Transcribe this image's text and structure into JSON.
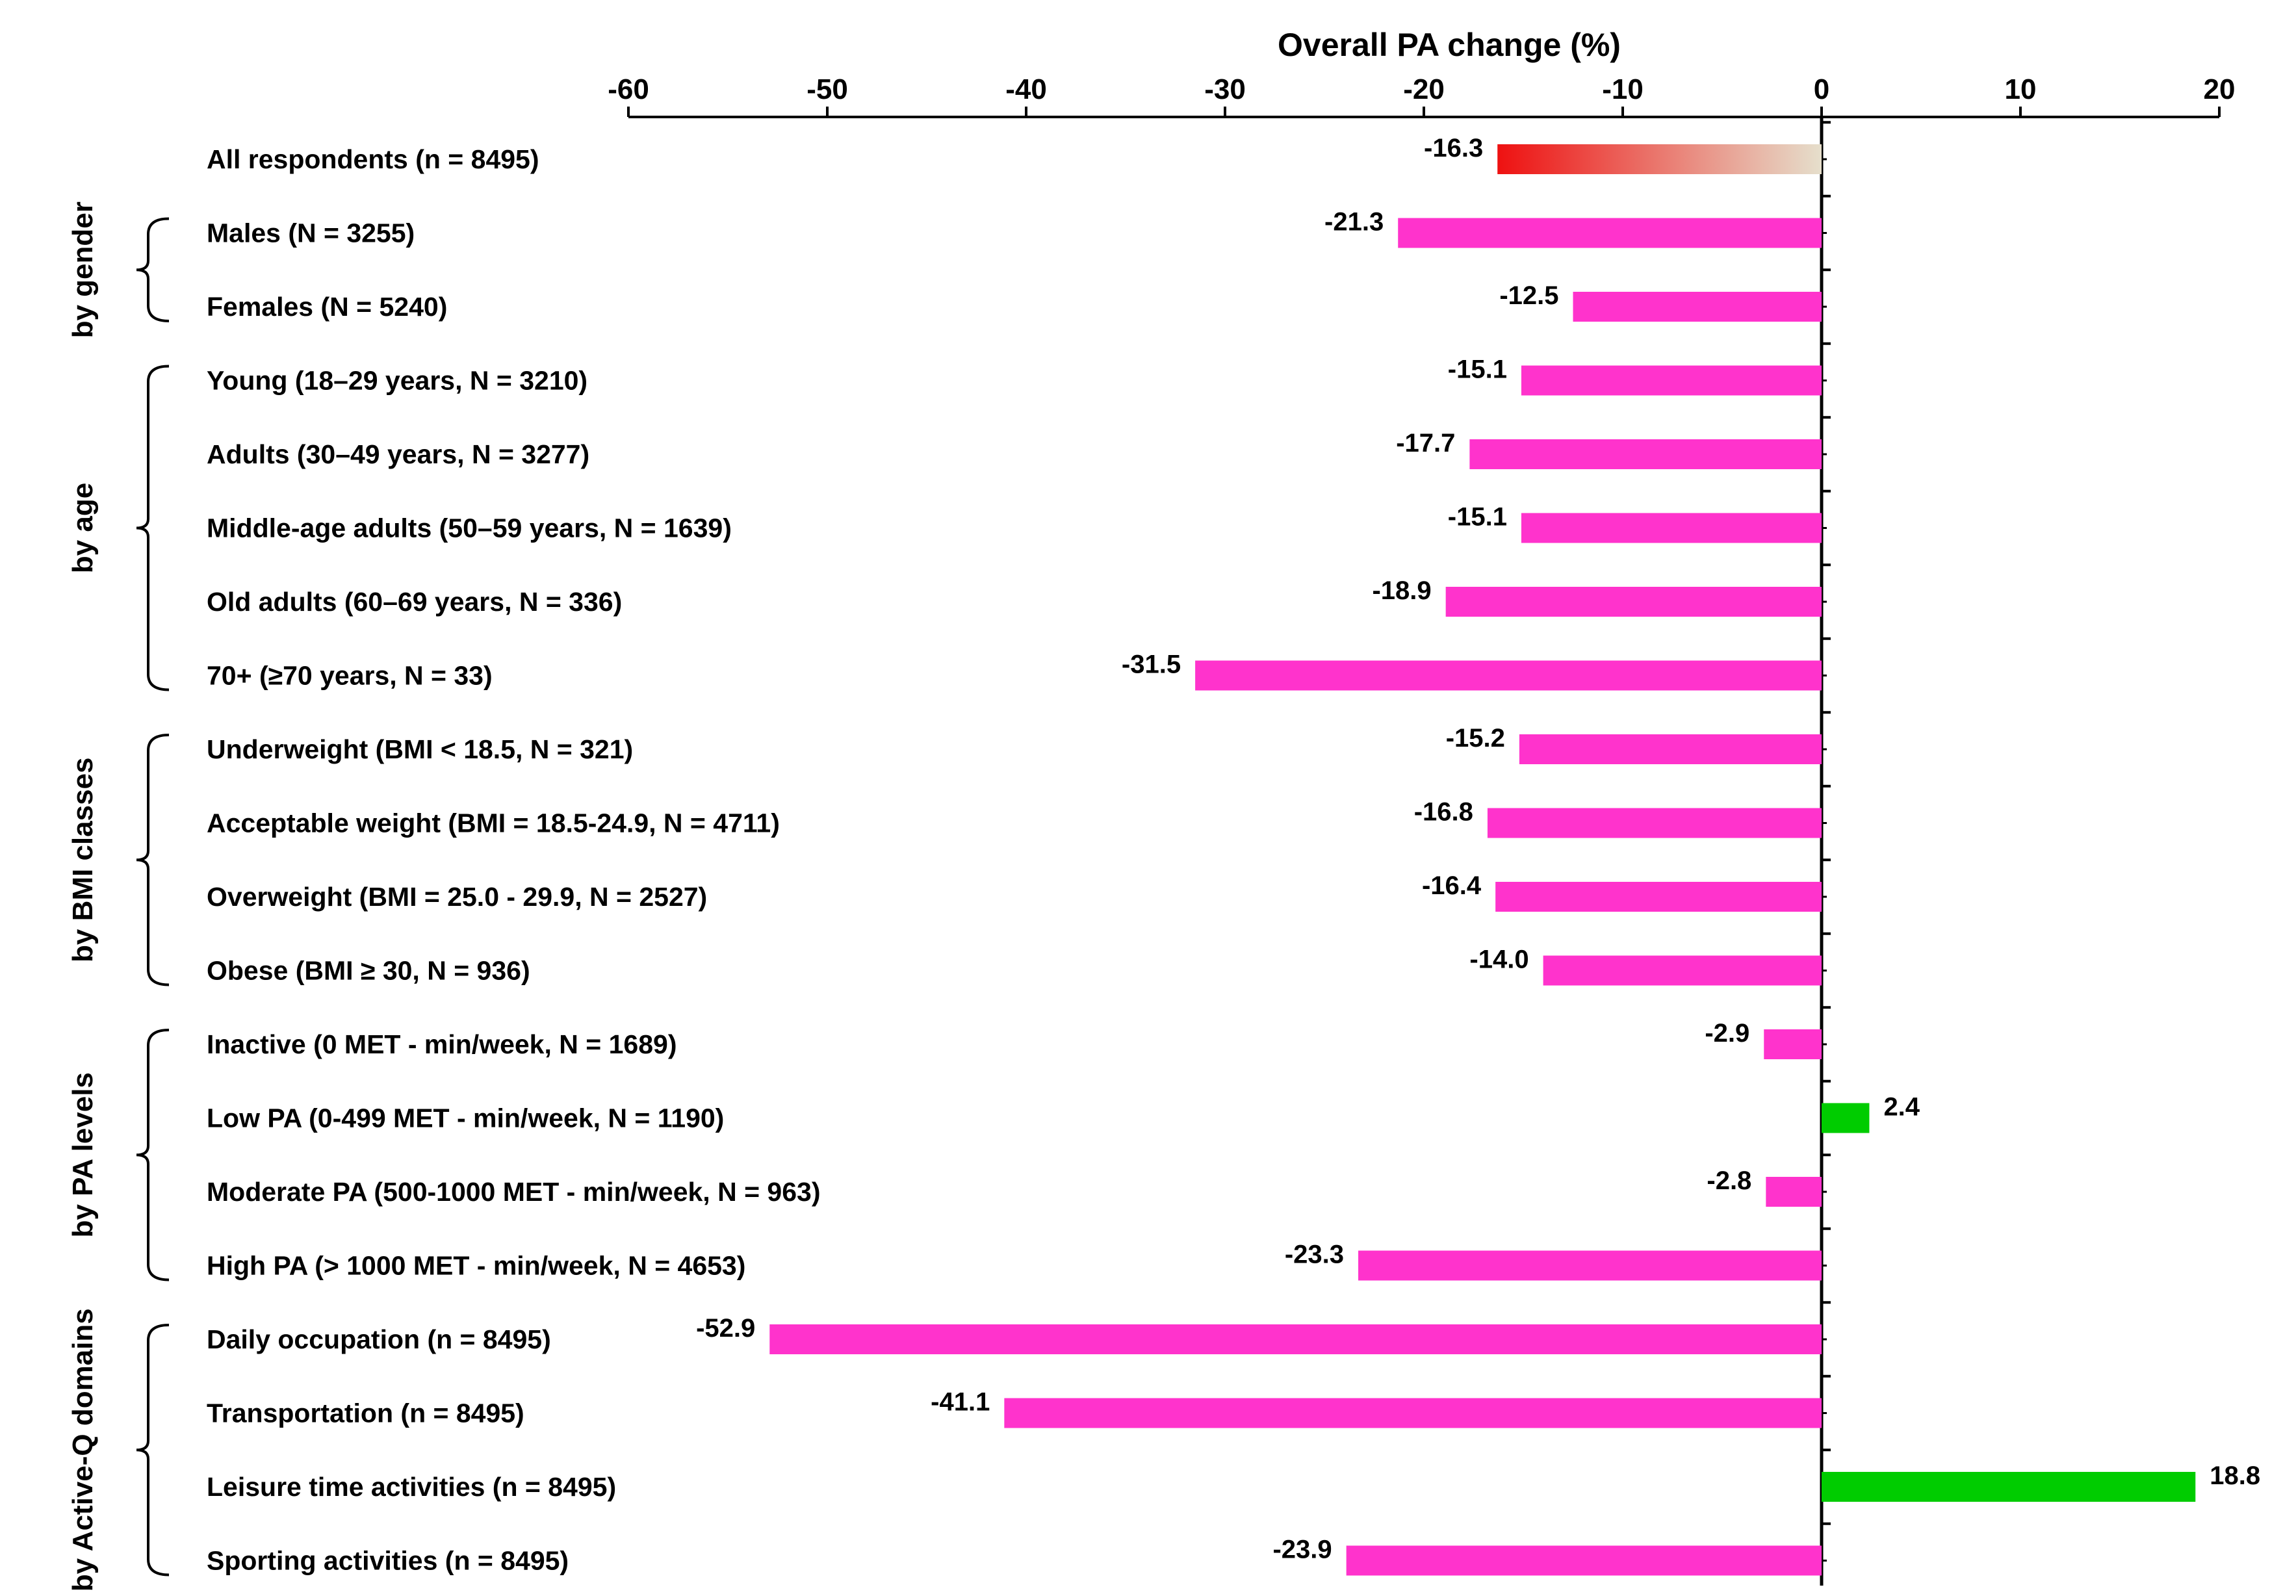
{
  "chart_data": {
    "type": "bar",
    "orientation": "horizontal",
    "title": "Overall PA change (%)",
    "xlabel": "Overall PA change (%)",
    "ylabel": "",
    "xlim": [
      -60,
      20
    ],
    "xticks": [
      -60,
      -50,
      -40,
      -30,
      -20,
      -10,
      0,
      10,
      20
    ],
    "tick_labels": [
      "-60",
      "-50",
      "-40",
      "-30",
      "-20",
      "-10",
      "0",
      "10",
      "20"
    ],
    "axis_position": "top",
    "colors": {
      "negative": "#ff33cc",
      "positive": "#00cc00",
      "overall_gradient_start": "#ee1111",
      "overall_gradient_end": "#e6dfcc"
    },
    "categories": [
      "All respondents (n = 8495)",
      "Males (N = 3255)",
      "Females (N = 5240)",
      "Young (18–29 years,  N = 3210)",
      "Adults (30–49 years,  N = 3277)",
      "Middle-age adults (50–59 years,  N = 1639)",
      "Old adults (60–69 years,  N = 336)",
      "70+ (≥70 years,  N = 33)",
      "Underweight (BMI < 18.5, N = 321)",
      "Acceptable weight (BMI = 18.5-24.9, N = 4711)",
      "Overweight (BMI = 25.0 - 29.9, N = 2527)",
      "Obese (BMI ≥ 30, N = 936)",
      "Inactive (0 MET - min/week, N = 1689)",
      "Low PA (0-499 MET - min/week, N = 1190)",
      "Moderate PA (500-1000 MET - min/week, N = 963)",
      "High PA (> 1000 MET - min/week, N = 4653)",
      "Daily occupation (n = 8495)",
      "Transportation (n = 8495)",
      "Leisure time activities (n = 8495)",
      "Sporting activities (n = 8495)"
    ],
    "values": [
      -16.3,
      -21.3,
      -12.5,
      -15.1,
      -17.7,
      -15.1,
      -18.9,
      -31.5,
      -15.2,
      -16.8,
      -16.4,
      -14.0,
      -2.9,
      2.4,
      -2.8,
      -23.3,
      -52.9,
      -41.1,
      18.8,
      -23.9
    ],
    "value_labels": [
      "-16.3",
      "-21.3",
      "-12.5",
      "-15.1",
      "-17.7",
      "-15.1",
      "-18.9",
      "-31.5",
      "-15.2",
      "-16.8",
      "-16.4",
      "-14.0",
      "-2.9",
      "2.4",
      "-2.8",
      "-23.3",
      "-52.9",
      "-41.1",
      "18.8",
      "-23.9"
    ],
    "groups": [
      {
        "label": "by gender",
        "start": 1,
        "end": 2
      },
      {
        "label": "by age",
        "start": 3,
        "end": 7
      },
      {
        "label": "by BMI classes",
        "start": 8,
        "end": 11
      },
      {
        "label": "by PA levels",
        "start": 12,
        "end": 15
      },
      {
        "label": "by Active-Q domains",
        "start": 16,
        "end": 19
      }
    ]
  }
}
